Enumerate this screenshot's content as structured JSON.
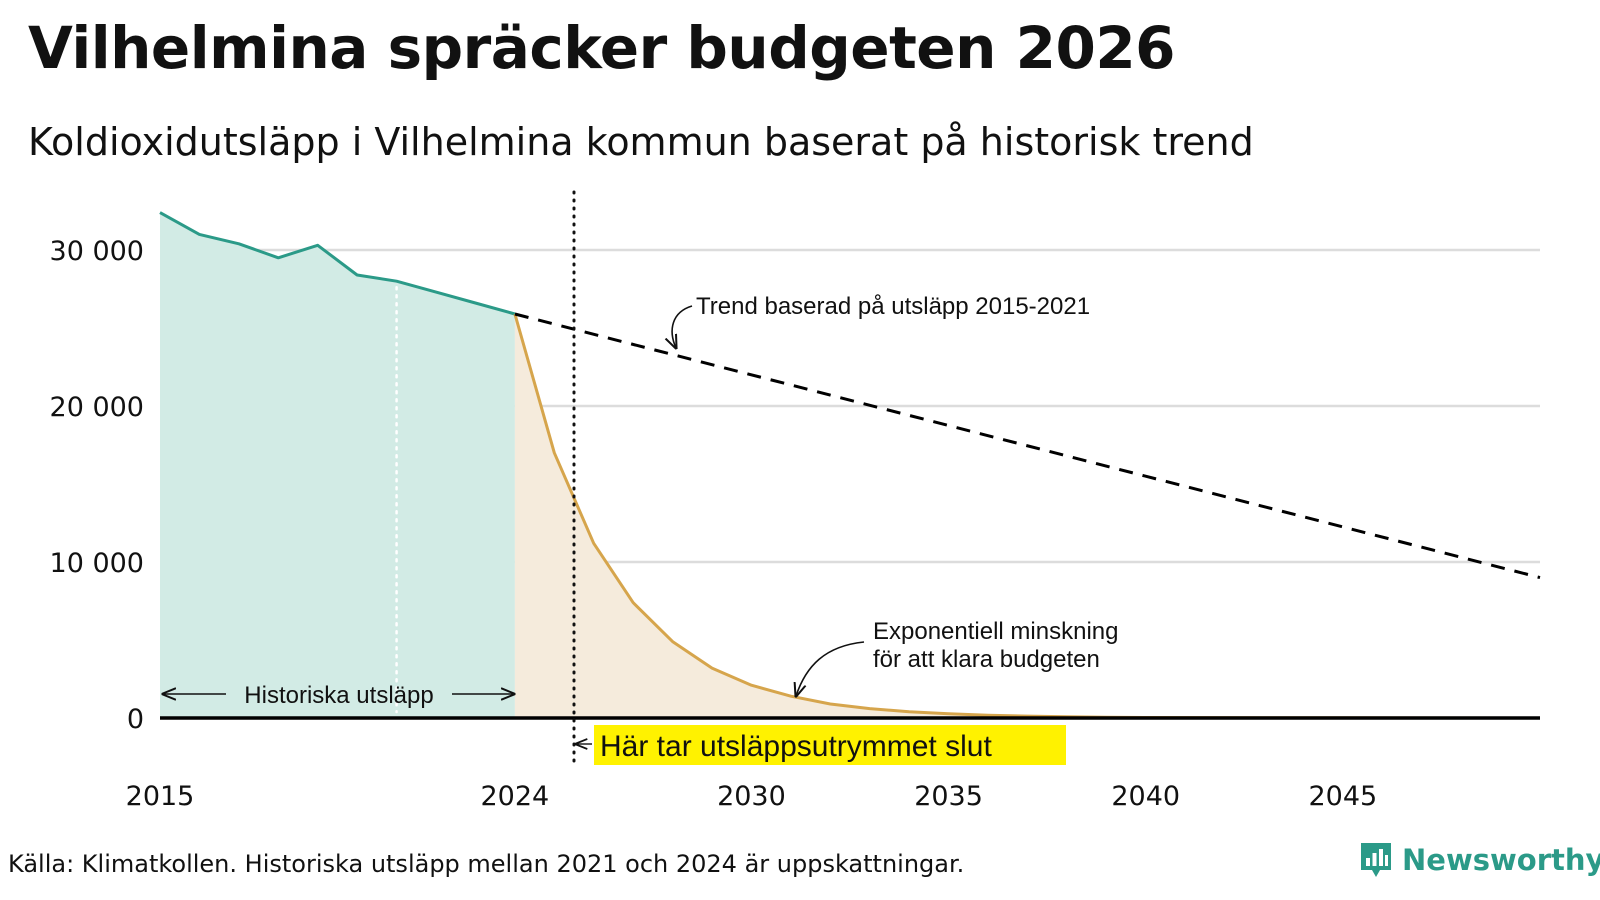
{
  "title": "Vilhelmina spräcker budgeten 2026",
  "subtitle": "Koldioxidutsläpp i Vilhelmina kommun baserat på historisk trend",
  "source": "Källa: Klimatkollen. Historiska utsläpp mellan 2021 och 2024 är uppskattningar.",
  "brand": {
    "name": "Newsworthy",
    "icon": "newsworthy-logo-icon",
    "color": "#2b9a88"
  },
  "chart_data": {
    "type": "area",
    "title": "Vilhelmina spräcker budgeten 2026",
    "subtitle": "Koldioxidutsläpp i Vilhelmina kommun baserat på historisk trend",
    "xlim": [
      2015,
      2050
    ],
    "ylim": [
      0,
      35000
    ],
    "grid": true,
    "x_ticks": [
      {
        "value": 2015,
        "label": "2015"
      },
      {
        "value": 2024,
        "label": "2024"
      },
      {
        "value": 2030,
        "label": "2030"
      },
      {
        "value": 2035,
        "label": "2035"
      },
      {
        "value": 2040,
        "label": "2040"
      },
      {
        "value": 2045,
        "label": "2045"
      }
    ],
    "y_ticks": [
      {
        "value": 0,
        "label": "0"
      },
      {
        "value": 10000,
        "label": "10 000"
      },
      {
        "value": 20000,
        "label": "20 000"
      },
      {
        "value": 30000,
        "label": "30 000"
      }
    ],
    "series": [
      {
        "name": "Historiska utsläpp",
        "style": "area",
        "color": "#2b9a88",
        "fill": "#d2ebe5",
        "x": [
          2015,
          2016,
          2017,
          2018,
          2019,
          2020,
          2021,
          2022,
          2023,
          2024
        ],
        "values": [
          32400,
          31000,
          30400,
          29500,
          30300,
          28400,
          28000,
          27300,
          26600,
          25900
        ]
      },
      {
        "name": "Exponentiell minskning för att klara budgeten",
        "style": "area",
        "color": "#d6a54c",
        "fill": "#f5ebdc",
        "x": [
          2024,
          2025,
          2026,
          2027,
          2028,
          2029,
          2030,
          2031,
          2032,
          2033,
          2034,
          2035,
          2036,
          2037,
          2038,
          2039,
          2040,
          2045,
          2050
        ],
        "values": [
          25900,
          17000,
          11200,
          7400,
          4900,
          3200,
          2100,
          1400,
          900,
          600,
          400,
          270,
          180,
          120,
          80,
          50,
          30,
          10,
          0
        ]
      },
      {
        "name": "Trend baserad på utsläpp 2015-2021",
        "style": "dashed",
        "color": "#000000",
        "x": [
          2024,
          2050
        ],
        "values": [
          25900,
          9000
        ]
      }
    ],
    "markers": [
      {
        "name": "budget-end",
        "x": 2025.5,
        "style": "dotted"
      },
      {
        "name": "estimate-start",
        "x": 2021,
        "style": "dotted-white"
      }
    ],
    "annotations": {
      "trend": "Trend baserad på utsläpp 2015-2021",
      "exp_line1": "Exponentiell minskning",
      "exp_line2": "för att klara budgeten",
      "historic": "Historiska utsläpp",
      "budget_end": "Här tar utsläppsutrymmet slut",
      "highlight_color": "#fff200"
    }
  }
}
